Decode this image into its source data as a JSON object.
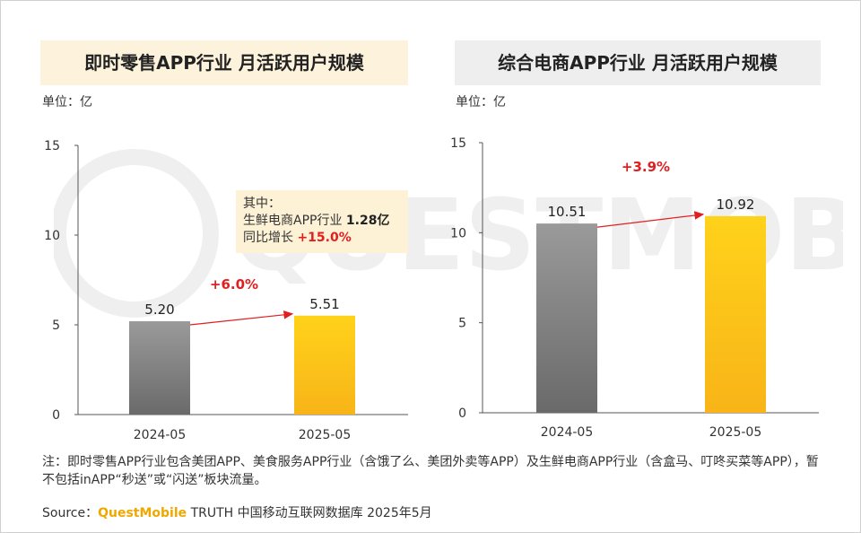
{
  "left_chart": {
    "title": "即时零售APP行业 月活跃用户规模",
    "unit": "单位：亿",
    "callout": {
      "line1": "其中：",
      "line2_label": "生鲜电商APP行业 ",
      "line2_value": "1.28亿",
      "line3_label": "同比增长 ",
      "line3_value": "+15.0%"
    }
  },
  "right_chart": {
    "title": "综合电商APP行业 月活跃用户规模",
    "unit": "单位：亿"
  },
  "note": "注：即时零售APP行业包含美团APP、美食服务APP行业（含饿了么、美团外卖等APP）及生鲜电商APP行业（含盒马、叮咚买菜等APP），暂不包括inAPP“秒送”或“闪送”板块流量。",
  "source": {
    "prefix": "Source：",
    "brand": "QuestMobile",
    "suffix": " TRUTH 中国移动互联网数据库 2025年5月"
  },
  "watermark_text": "QUESTMOBILE",
  "colors": {
    "bar_2024": "#7a7a7a",
    "bar_2025": "#fbbf12",
    "arrow": "#e02020"
  },
  "chart_data": [
    {
      "type": "bar",
      "title": "即时零售APP行业 月活跃用户规模",
      "categories": [
        "2024-05",
        "2025-05"
      ],
      "values": [
        5.2,
        5.51
      ],
      "value_labels": [
        "5.20",
        "5.51"
      ],
      "ylim": [
        0,
        15
      ],
      "yticks": [
        "0",
        "5",
        "10",
        "15"
      ],
      "growth_label": "+6.0%",
      "grid": false
    },
    {
      "type": "bar",
      "title": "综合电商APP行业 月活跃用户规模",
      "categories": [
        "2024-05",
        "2025-05"
      ],
      "values": [
        10.51,
        10.92
      ],
      "value_labels": [
        "10.51",
        "10.92"
      ],
      "ylim": [
        0,
        15
      ],
      "yticks": [
        "0",
        "5",
        "10",
        "15"
      ],
      "growth_label": "+3.9%",
      "grid": false
    }
  ]
}
